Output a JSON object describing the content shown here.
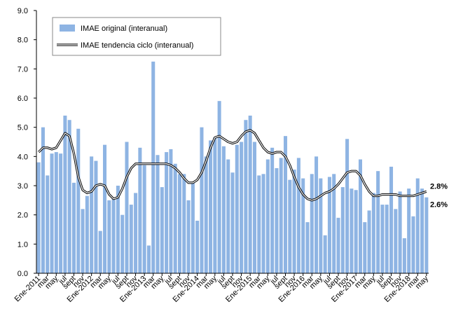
{
  "chart_data": {
    "type": "bar",
    "categories": [
      "Ene-2011",
      null,
      "mar",
      null,
      "may",
      null,
      "jul",
      null,
      "sept",
      null,
      "nov",
      null,
      "Ene-2012",
      null,
      "mar",
      null,
      "may",
      null,
      "jul",
      null,
      "sept",
      null,
      "nov",
      null,
      "Ene-2013",
      null,
      "mar",
      null,
      "may",
      null,
      "jul",
      null,
      "sept",
      null,
      "nov",
      null,
      "Ene-2014",
      null,
      "mar",
      null,
      "may",
      null,
      "jul",
      null,
      "sept",
      null,
      "nov",
      null,
      "Ene-2015",
      null,
      "mar",
      null,
      "may",
      null,
      "jul",
      null,
      "sept",
      null,
      "nov",
      null,
      "Ene-2016",
      null,
      "mar",
      null,
      "may",
      null,
      "jul",
      null,
      "sept",
      null,
      "nov",
      null,
      "Ene-2017",
      null,
      "mar",
      null,
      "may",
      null,
      "jul",
      null,
      "sept",
      null,
      "nov",
      null,
      "Ene-2018",
      null,
      "mar",
      null,
      "may"
    ],
    "series": [
      {
        "name": "IMAE original (interanual)",
        "type": "bar",
        "color": "#8eb4e3",
        "values": [
          3.8,
          5.0,
          3.35,
          4.1,
          4.15,
          4.1,
          5.4,
          5.25,
          3.1,
          4.95,
          2.2,
          2.65,
          4.0,
          3.85,
          1.45,
          4.4,
          2.5,
          2.55,
          3.0,
          2.0,
          4.5,
          2.35,
          2.75,
          4.3,
          3.7,
          0.95,
          7.25,
          4.05,
          2.95,
          4.15,
          4.25,
          3.75,
          3.4,
          3.4,
          2.5,
          3.1,
          1.8,
          5.0,
          4.0,
          4.55,
          4.65,
          5.9,
          4.35,
          3.9,
          3.45,
          4.4,
          4.5,
          5.25,
          5.4,
          4.5,
          3.35,
          3.4,
          3.9,
          4.3,
          3.6,
          3.95,
          4.7,
          3.2,
          3.55,
          3.95,
          3.25,
          1.75,
          3.4,
          4.0,
          3.25,
          1.3,
          3.3,
          3.4,
          1.9,
          2.95,
          4.6,
          2.9,
          2.85,
          3.9,
          1.75,
          2.15,
          2.75,
          3.5,
          2.35,
          2.35,
          3.65,
          2.2,
          2.8,
          1.2,
          2.9,
          1.95,
          3.25,
          2.9,
          2.6
        ],
        "value_labels": [
          null,
          null,
          null,
          null,
          null,
          null,
          null,
          null,
          null,
          null,
          null,
          null,
          null,
          null,
          null,
          null,
          null,
          null,
          null,
          null,
          null,
          null,
          null,
          null,
          null,
          null,
          null,
          null,
          null,
          null,
          null,
          null,
          null,
          null,
          null,
          null,
          null,
          null,
          null,
          null,
          null,
          null,
          null,
          null,
          null,
          null,
          null,
          null,
          null,
          null,
          null,
          null,
          null,
          null,
          null,
          null,
          null,
          null,
          null,
          null,
          null,
          null,
          null,
          null,
          null,
          null,
          null,
          null,
          null,
          null,
          null,
          null,
          null,
          null,
          null,
          null,
          null,
          null,
          null,
          null,
          null,
          null,
          null,
          null,
          null,
          null,
          null,
          null,
          "2.6%"
        ]
      },
      {
        "name": "IMAE tendencia ciclo (interanual)",
        "type": "line",
        "color": "#000000",
        "values": [
          4.15,
          4.3,
          4.3,
          4.25,
          4.3,
          4.55,
          4.8,
          4.7,
          4.1,
          3.3,
          2.85,
          2.75,
          2.8,
          3.0,
          3.05,
          3.0,
          2.7,
          2.55,
          2.6,
          2.9,
          3.3,
          3.6,
          3.75,
          3.75,
          3.75,
          3.75,
          3.75,
          3.75,
          3.75,
          3.75,
          3.7,
          3.6,
          3.45,
          3.25,
          3.1,
          3.1,
          3.2,
          3.45,
          3.85,
          4.3,
          4.65,
          4.7,
          4.6,
          4.5,
          4.45,
          4.5,
          4.7,
          4.85,
          4.9,
          4.8,
          4.55,
          4.3,
          4.15,
          4.1,
          4.15,
          4.15,
          4.0,
          3.7,
          3.3,
          2.95,
          2.7,
          2.55,
          2.5,
          2.55,
          2.65,
          2.75,
          2.8,
          2.9,
          3.05,
          3.25,
          3.45,
          3.5,
          3.5,
          3.35,
          3.05,
          2.8,
          2.65,
          2.65,
          2.7,
          2.7,
          2.7,
          2.7,
          2.65,
          2.65,
          2.65,
          2.65,
          2.7,
          2.75,
          2.8
        ],
        "value_labels": [
          null,
          null,
          null,
          null,
          null,
          null,
          null,
          null,
          null,
          null,
          null,
          null,
          null,
          null,
          null,
          null,
          null,
          null,
          null,
          null,
          null,
          null,
          null,
          null,
          null,
          null,
          null,
          null,
          null,
          null,
          null,
          null,
          null,
          null,
          null,
          null,
          null,
          null,
          null,
          null,
          null,
          null,
          null,
          null,
          null,
          null,
          null,
          null,
          null,
          null,
          null,
          null,
          null,
          null,
          null,
          null,
          null,
          null,
          null,
          null,
          null,
          null,
          null,
          null,
          null,
          null,
          null,
          null,
          null,
          null,
          null,
          null,
          null,
          null,
          null,
          null,
          null,
          null,
          null,
          null,
          null,
          null,
          null,
          null,
          null,
          null,
          null,
          null,
          "2.8%"
        ]
      }
    ],
    "ylim": [
      0,
      9
    ],
    "yticks": [
      {
        "value": 0,
        "label": "0.0"
      },
      {
        "value": 1,
        "label": "1.0"
      },
      {
        "value": 2,
        "label": "2.0"
      },
      {
        "value": 3,
        "label": "3.0"
      },
      {
        "value": 4,
        "label": "4.0"
      },
      {
        "value": 5,
        "label": "5.0"
      },
      {
        "value": 6,
        "label": "6.0"
      },
      {
        "value": 7,
        "label": "7.0"
      },
      {
        "value": 8,
        "label": "8.0"
      },
      {
        "value": 9,
        "label": "9.0"
      }
    ],
    "grid": false,
    "legend": "top-left"
  }
}
